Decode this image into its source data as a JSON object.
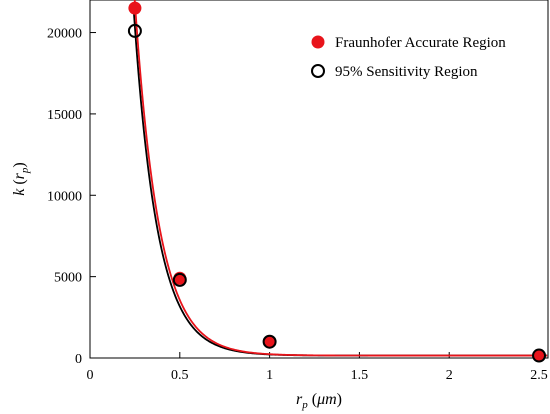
{
  "chart_data": {
    "type": "scatter",
    "xlabel": "r_p (μm)",
    "ylabel": "k (r_p)",
    "xlim": [
      0,
      2.55
    ],
    "ylim": [
      0,
      22000
    ],
    "xticks": [
      "0",
      "0.5",
      "1",
      "1.5",
      "2",
      "2.5"
    ],
    "xtick_values": [
      0,
      0.5,
      1,
      1.5,
      2,
      2.5
    ],
    "yticks": [
      "0",
      "5000",
      "10000",
      "15000",
      "20000"
    ],
    "ytick_values": [
      0,
      5000,
      10000,
      15000,
      20000
    ],
    "legend_position": "top-right",
    "grid": false,
    "series": [
      {
        "name": "Fraunhofer Accurate Region",
        "marker": "filled-circle",
        "color": "#e8141b",
        "x": [
          0.25,
          0.5,
          1.0,
          2.5
        ],
        "y": [
          21500,
          4900,
          1000,
          150
        ],
        "fit": {
          "model": "exponential",
          "a": 138000,
          "b": 7.4,
          "c": 150
        }
      },
      {
        "name": "95% Sensitivity Region",
        "marker": "open-circle",
        "color": "#000000",
        "x": [
          0.25,
          0.5,
          1.0,
          2.5
        ],
        "y": [
          20100,
          4800,
          1000,
          150
        ],
        "fit": {
          "model": "exponential",
          "a": 135000,
          "b": 7.6,
          "c": 150
        }
      }
    ]
  }
}
